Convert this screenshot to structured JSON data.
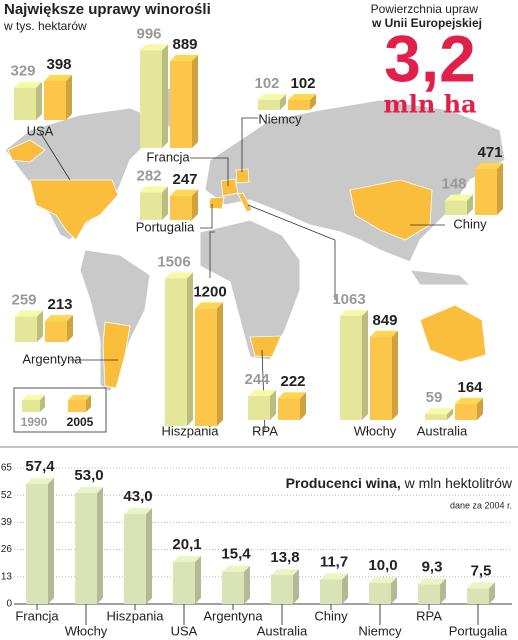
{
  "chart_data": [
    {
      "type": "map-boxes",
      "title": "Największe uprawy winorośli",
      "subtitle": "w tys. hektarów",
      "categories": [
        "USA",
        "Francja",
        "Niemcy",
        "Portugalia",
        "Chiny",
        "Hiszpania",
        "Argentyna",
        "RPA",
        "Włochy",
        "Australia"
      ],
      "series": [
        {
          "name": "1990",
          "color": "#e4e79a",
          "values": [
            329,
            996,
            102,
            282,
            148,
            1506,
            259,
            244,
            1063,
            59
          ]
        },
        {
          "name": "2005",
          "color": "#fcc64a",
          "values": [
            398,
            889,
            102,
            247,
            471,
            1200,
            213,
            222,
            849,
            164
          ]
        }
      ],
      "annotation": {
        "caption": [
          "Powierzchnia upraw",
          "w Unii Europejskiej"
        ],
        "text": "3,2",
        "unit": "mln ha"
      }
    },
    {
      "type": "bar",
      "title": "Producenci wina,",
      "title_unit": "w mln hektolitrów",
      "note": "dane za 2004 r.",
      "categories": [
        "Francja",
        "Włochy",
        "Hiszpania",
        "USA",
        "Argentyna",
        "Australia",
        "Chiny",
        "Niemcy",
        "RPA",
        "Portugalia"
      ],
      "values": [
        57.4,
        53.0,
        43.0,
        20.1,
        15.4,
        13.8,
        11.7,
        10.0,
        9.3,
        7.5
      ],
      "value_labels": [
        "57,4",
        "53,0",
        "43,0",
        "20,1",
        "15,4",
        "13,8",
        "11,7",
        "10,0",
        "9,3",
        "7,5"
      ],
      "color": "#d9e3b6",
      "ylim": [
        0,
        65
      ],
      "yticks": [
        0,
        13,
        26,
        39,
        52,
        65
      ],
      "grid": true
    }
  ]
}
